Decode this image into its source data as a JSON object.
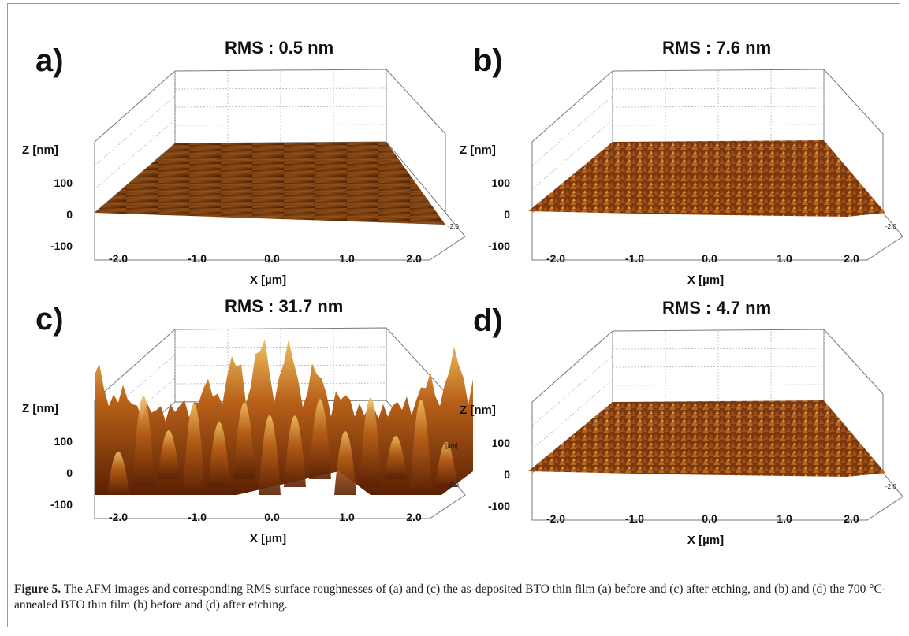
{
  "panels": [
    {
      "label": "a)",
      "rms": "RMS : 0.5 nm",
      "z_label": "Z [nm]",
      "z_ticks": [
        "100",
        "0",
        "-100"
      ],
      "x_ticks": [
        "-2.0",
        "-1.0",
        "0.0",
        "1.0",
        "2.0"
      ],
      "x_label": "X [µm]",
      "side_tick": "-2.0"
    },
    {
      "label": "b)",
      "rms": "RMS : 7.6 nm",
      "z_label": "Z [nm]",
      "z_ticks": [
        "100",
        "0",
        "-100"
      ],
      "x_ticks": [
        "-2.0",
        "-1.0",
        "0.0",
        "1.0",
        "2.0"
      ],
      "x_label": "X [µm]",
      "side_tick": "-2.0"
    },
    {
      "label": "c)",
      "rms": "RMS : 31.7 nm",
      "z_label": "Z [nm]",
      "z_ticks": [
        "100",
        "0",
        "-100"
      ],
      "x_ticks": [
        "-2.0",
        "-1.0",
        "0.0",
        "1.0",
        "2.0"
      ],
      "x_label": "X [µm]",
      "side_tick": "-2.0",
      "unit_note": "[µm]"
    },
    {
      "label": "d)",
      "rms": "RMS : 4.7 nm",
      "z_label": "Z [nm]",
      "z_ticks": [
        "100",
        "0",
        "-100"
      ],
      "x_ticks": [
        "-2.0",
        "-1.0",
        "0.0",
        "1.0",
        "2.0"
      ],
      "x_label": "X [µm]",
      "side_tick": "-2.0"
    }
  ],
  "caption": {
    "label": "Figure 5.",
    "text": "The AFM images and corresponding RMS surface roughnesses of (a) and (c) the as-deposited BTO thin film (a) before and (c) after etching, and (b) and (d) the 700 °C-annealed BTO thin film (b) before and (d) after etching."
  }
}
